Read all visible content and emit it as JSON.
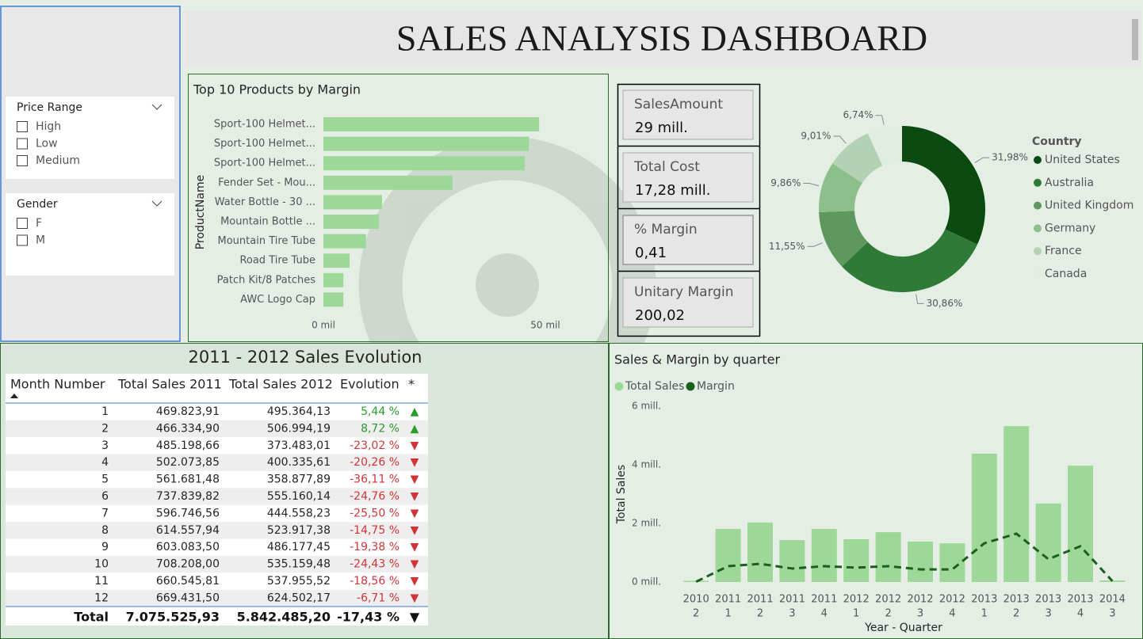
{
  "header": {
    "title": "SALES ANALYSIS DASHBOARD"
  },
  "slicers": [
    {
      "title": "Price Range",
      "options": [
        "High",
        "Low",
        "Medium"
      ]
    },
    {
      "title": "Gender",
      "options": [
        "F",
        "M"
      ]
    }
  ],
  "kpis": [
    {
      "label": "SalesAmount",
      "value": "29 mill."
    },
    {
      "label": "Total Cost",
      "value": "17,28 mill."
    },
    {
      "label": "% Margin",
      "value": "0,41"
    },
    {
      "label": "Unitary Margin",
      "value": "200,02"
    }
  ],
  "table": {
    "title": "2011 - 2012 Sales Evolution",
    "columns": [
      "Month Number",
      "Total Sales 2011",
      "Total Sales 2012",
      "Evolution",
      "*"
    ],
    "positive_color": "#2a9d2a",
    "negative_color": "#d13438",
    "rows": [
      [
        "1",
        "469.823,91",
        "495.364,13",
        "5,44 %",
        "▲"
      ],
      [
        "2",
        "466.334,90",
        "506.994,19",
        "8,72 %",
        "▲"
      ],
      [
        "3",
        "485.198,66",
        "373.483,01",
        "-23,02 %",
        "▼"
      ],
      [
        "4",
        "502.073,85",
        "400.335,61",
        "-20,26 %",
        "▼"
      ],
      [
        "5",
        "561.681,48",
        "358.877,89",
        "-36,11 %",
        "▼"
      ],
      [
        "6",
        "737.839,82",
        "555.160,14",
        "-24,76 %",
        "▼"
      ],
      [
        "7",
        "596.746,56",
        "444.558,23",
        "-25,50 %",
        "▼"
      ],
      [
        "8",
        "614.557,94",
        "523.917,38",
        "-14,75 %",
        "▼"
      ],
      [
        "9",
        "603.083,50",
        "486.177,45",
        "-19,38 %",
        "▼"
      ],
      [
        "10",
        "708.208,00",
        "535.159,48",
        "-24,43 %",
        "▼"
      ],
      [
        "11",
        "660.545,81",
        "537.955,52",
        "-18,56 %",
        "▼"
      ],
      [
        "12",
        "669.431,50",
        "624.502,17",
        "-6,71 %",
        "▼"
      ]
    ],
    "total": [
      "Total",
      "7.075.525,93",
      "5.842.485,20",
      "-17,43 %",
      "▼"
    ]
  },
  "chart_data": [
    {
      "type": "bar",
      "orientation": "horizontal",
      "title": "Top 10 Products by Margin",
      "y_label": "ProductName",
      "categories": [
        "Sport-100 Helmet...",
        "Sport-100 Helmet...",
        "Sport-100 Helmet...",
        "Fender Set - Mou...",
        "Water Bottle - 30 ...",
        "Mountain Bottle ...",
        "Mountain Tire Tube",
        "Road Tire Tube",
        "Patch Kit/8 Patches",
        "AWC Logo Cap"
      ],
      "values": [
        48600,
        46300,
        45400,
        29100,
        13200,
        12500,
        9600,
        5900,
        4500,
        4500
      ],
      "color": "#9ed898",
      "xlim": [
        0,
        60000
      ],
      "xticks": [
        {
          "value": 0,
          "label": "0 mil"
        },
        {
          "value": 50000,
          "label": "50 mil"
        }
      ]
    },
    {
      "type": "donut",
      "legend_title": "Country",
      "categories": [
        "United States",
        "Australia",
        "United Kingdom",
        "Germany",
        "France",
        "Canada"
      ],
      "values": [
        31.98,
        30.86,
        11.55,
        9.86,
        9.01,
        6.74
      ],
      "value_labels": [
        "31,98%",
        "30,86%",
        "11,55%",
        "9,86%",
        "9,01%",
        "6,74%"
      ],
      "colors": [
        "#0b4a10",
        "#2f7a37",
        "#5e985e",
        "#8dbf8d",
        "#b3d2b3",
        "#e1ede0"
      ]
    },
    {
      "type": "bar",
      "title": "Sales & Margin by quarter",
      "x_label": "Year - Quarter",
      "y_label": "Total Sales",
      "categories": [
        [
          "2010",
          "2"
        ],
        [
          "2011",
          "1"
        ],
        [
          "2011",
          "2"
        ],
        [
          "2011",
          "3"
        ],
        [
          "2011",
          "4"
        ],
        [
          "2012",
          "1"
        ],
        [
          "2012",
          "2"
        ],
        [
          "2012",
          "3"
        ],
        [
          "2012",
          "4"
        ],
        [
          "2013",
          "1"
        ],
        [
          "2013",
          "2"
        ],
        [
          "2013",
          "3"
        ],
        [
          "2013",
          "4"
        ],
        [
          "2014",
          "3"
        ]
      ],
      "series": [
        {
          "name": "Total Sales",
          "color": "#9ed898",
          "values": [
            40000,
            1810000,
            2030000,
            1430000,
            1810000,
            1460000,
            1700000,
            1380000,
            1320000,
            4380000,
            5320000,
            2680000,
            3970000,
            50000
          ]
        },
        {
          "name": "Margin",
          "type": "line",
          "color": "#1b5e20",
          "values": [
            10000,
            540000,
            620000,
            460000,
            540000,
            490000,
            540000,
            430000,
            430000,
            1320000,
            1650000,
            780000,
            1220000,
            30000
          ]
        }
      ],
      "ylim": [
        0,
        6000000
      ],
      "yticks": [
        {
          "value": 0,
          "label": "0 mill."
        },
        {
          "value": 2000000,
          "label": "2 mill."
        },
        {
          "value": 4000000,
          "label": "4 mill."
        },
        {
          "value": 6000000,
          "label": "6 mill."
        }
      ]
    }
  ]
}
